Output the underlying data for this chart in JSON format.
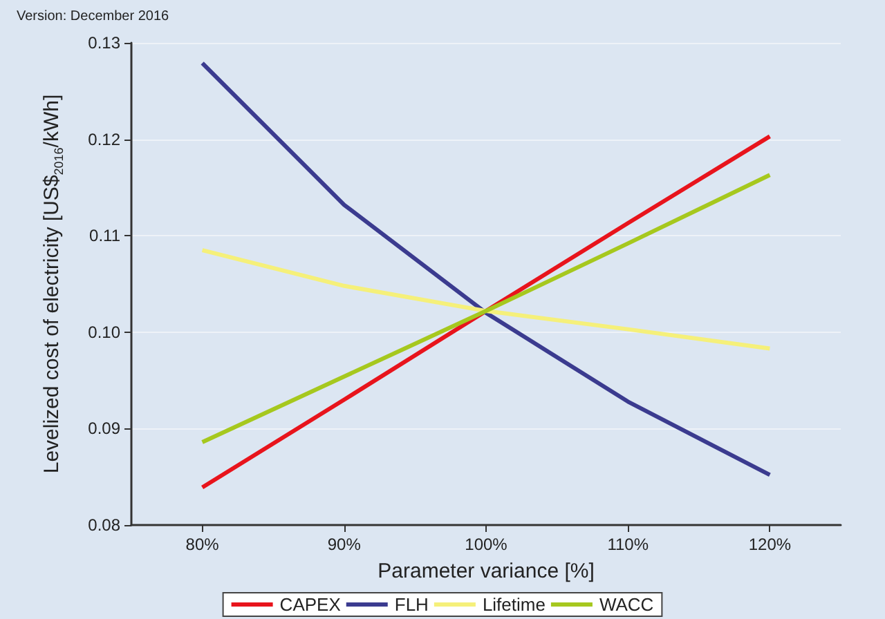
{
  "chart_data": {
    "type": "line",
    "xlabel": "Parameter variance [%]",
    "ylabel": "Levelized cost of electricity [US$$_{2016}$/kWh]",
    "annotations": [
      "Version: December 2016"
    ],
    "x": [
      80,
      90,
      100,
      110,
      120
    ],
    "series": [
      {
        "name": "CAPEX",
        "color": "#e8141c",
        "values": [
          0.0839,
          0.093,
          0.1022,
          0.1113,
          0.1203
        ]
      },
      {
        "name": "FLH",
        "color": "#3b3b8f",
        "values": [
          0.1279,
          0.1132,
          0.102,
          0.0928,
          0.0852
        ]
      },
      {
        "name": "Lifetime",
        "color": "#f5f07a",
        "values": [
          0.1085,
          0.1048,
          0.1022,
          0.1003,
          0.0983
        ]
      },
      {
        "name": "WACC",
        "color": "#a6c81e",
        "values": [
          0.0886,
          0.0954,
          0.1022,
          0.1092,
          0.1163
        ]
      }
    ],
    "xlim": [
      75,
      125
    ],
    "xticks": [
      {
        "value": 80,
        "label": "80%"
      },
      {
        "value": 90,
        "label": "90%"
      },
      {
        "value": 100,
        "label": "100%"
      },
      {
        "value": 110,
        "label": "110%"
      },
      {
        "value": 120,
        "label": "120%"
      }
    ],
    "ylim": [
      0.08,
      0.13
    ],
    "yticks": [
      0.08,
      0.09,
      {
        "value": 0.1,
        "label": "0.10"
      },
      0.11,
      0.12,
      0.13
    ],
    "grid": "y",
    "legend": "bottom",
    "marker": "none",
    "line_style": "solid"
  }
}
